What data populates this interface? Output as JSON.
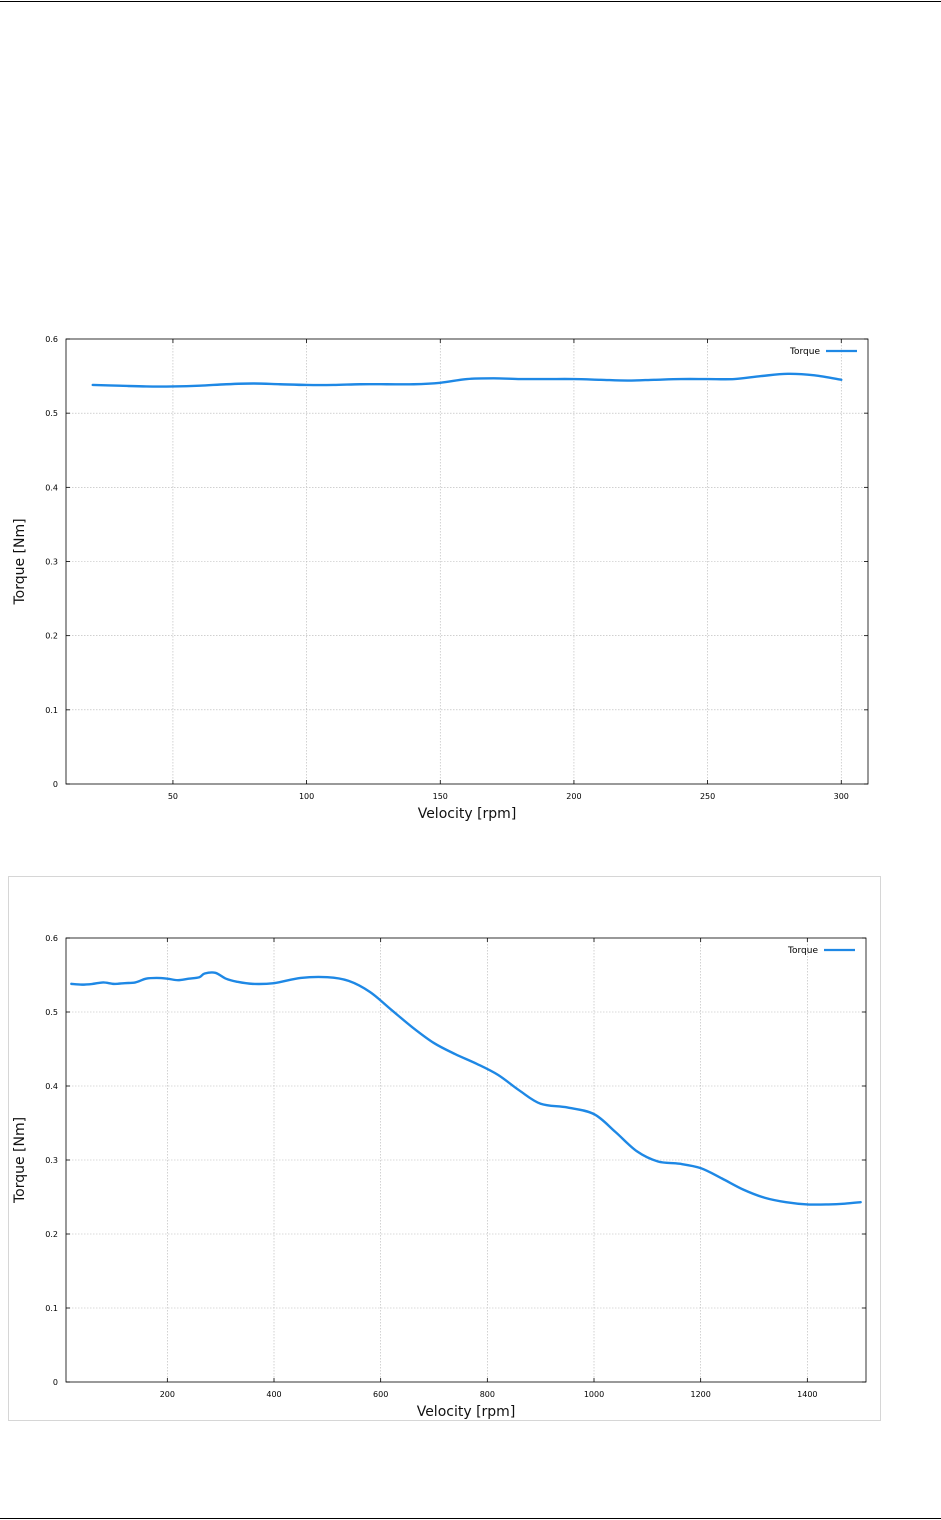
{
  "chart_data": [
    {
      "type": "line",
      "xlabel": "Velocity [rpm]",
      "ylabel": "Torque [Nm]",
      "xlim": [
        10,
        310
      ],
      "ylim": [
        0,
        0.6
      ],
      "xticks": [
        50,
        100,
        150,
        200,
        250,
        300
      ],
      "yticks": [
        0,
        0.1,
        0.2,
        0.3,
        0.4,
        0.5,
        0.6
      ],
      "ytick_labels": [
        "0",
        "0.1",
        "0.2",
        "0.3",
        "0.4",
        "0.5",
        "0.6"
      ],
      "grid": true,
      "legend_position": "top-right",
      "line_color": "#1e88e5",
      "series": [
        {
          "name": "Torque",
          "x": [
            20,
            30,
            40,
            50,
            60,
            70,
            80,
            90,
            100,
            110,
            120,
            130,
            140,
            150,
            160,
            170,
            180,
            190,
            200,
            210,
            220,
            230,
            240,
            250,
            260,
            270,
            280,
            290,
            300
          ],
          "y": [
            0.538,
            0.537,
            0.536,
            0.536,
            0.537,
            0.539,
            0.54,
            0.539,
            0.538,
            0.538,
            0.539,
            0.539,
            0.539,
            0.541,
            0.546,
            0.547,
            0.546,
            0.546,
            0.546,
            0.545,
            0.544,
            0.545,
            0.546,
            0.546,
            0.546,
            0.55,
            0.553,
            0.551,
            0.545
          ]
        }
      ]
    },
    {
      "type": "line",
      "xlabel": "Velocity [rpm]",
      "ylabel": "Torque [Nm]",
      "xlim": [
        10,
        1510
      ],
      "ylim": [
        0,
        0.6
      ],
      "xticks": [
        200,
        400,
        600,
        800,
        1000,
        1200,
        1400
      ],
      "yticks": [
        0,
        0.1,
        0.2,
        0.3,
        0.4,
        0.5,
        0.6
      ],
      "ytick_labels": [
        "0",
        "0.1",
        "0.2",
        "0.3",
        "0.4",
        "0.5",
        "0.6"
      ],
      "grid": true,
      "legend_position": "top-right",
      "line_color": "#1e88e5",
      "series": [
        {
          "name": "Torque",
          "x": [
            20,
            40,
            60,
            80,
            100,
            120,
            140,
            160,
            180,
            200,
            220,
            240,
            260,
            270,
            290,
            310,
            330,
            360,
            400,
            450,
            500,
            540,
            580,
            620,
            660,
            700,
            740,
            780,
            820,
            860,
            900,
            950,
            1000,
            1040,
            1080,
            1120,
            1160,
            1200,
            1240,
            1280,
            1320,
            1360,
            1400,
            1440,
            1470,
            1500
          ],
          "y": [
            0.538,
            0.537,
            0.538,
            0.54,
            0.538,
            0.539,
            0.54,
            0.545,
            0.546,
            0.545,
            0.543,
            0.545,
            0.547,
            0.552,
            0.553,
            0.545,
            0.541,
            0.538,
            0.539,
            0.546,
            0.547,
            0.542,
            0.527,
            0.503,
            0.479,
            0.458,
            0.443,
            0.43,
            0.415,
            0.394,
            0.376,
            0.371,
            0.362,
            0.338,
            0.312,
            0.298,
            0.295,
            0.289,
            0.275,
            0.26,
            0.249,
            0.243,
            0.24,
            0.24,
            0.241,
            0.243
          ]
        }
      ]
    }
  ]
}
